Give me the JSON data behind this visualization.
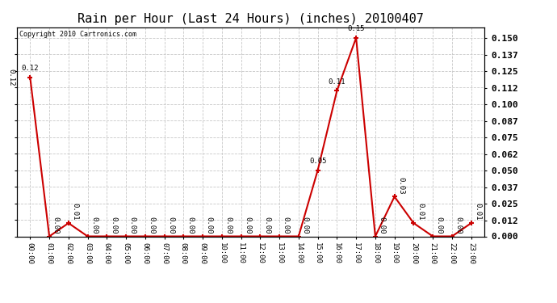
{
  "title": "Rain per Hour (Last 24 Hours) (inches) 20100407",
  "copyright_text": "Copyright 2010 Cartronics.com",
  "hours": [
    "00:00",
    "01:00",
    "02:00",
    "03:00",
    "04:00",
    "05:00",
    "06:00",
    "07:00",
    "08:00",
    "09:00",
    "10:00",
    "11:00",
    "12:00",
    "13:00",
    "14:00",
    "15:00",
    "16:00",
    "17:00",
    "18:00",
    "19:00",
    "20:00",
    "21:00",
    "22:00",
    "23:00"
  ],
  "values": [
    0.12,
    0.0,
    0.01,
    0.0,
    0.0,
    0.0,
    0.0,
    0.0,
    0.0,
    0.0,
    0.0,
    0.0,
    0.0,
    0.0,
    0.0,
    0.05,
    0.11,
    0.15,
    0.0,
    0.03,
    0.01,
    0.0,
    0.0,
    0.01
  ],
  "line_color": "#cc0000",
  "marker_color": "#cc0000",
  "grid_color": "#c8c8c8",
  "bg_color": "#ffffff",
  "title_fontsize": 11,
  "ylabel_right_ticks": [
    0.0,
    0.012,
    0.025,
    0.037,
    0.05,
    0.062,
    0.075,
    0.087,
    0.1,
    0.112,
    0.125,
    0.137,
    0.15
  ],
  "ylim": [
    0.0,
    0.158
  ],
  "font_family": "monospace"
}
